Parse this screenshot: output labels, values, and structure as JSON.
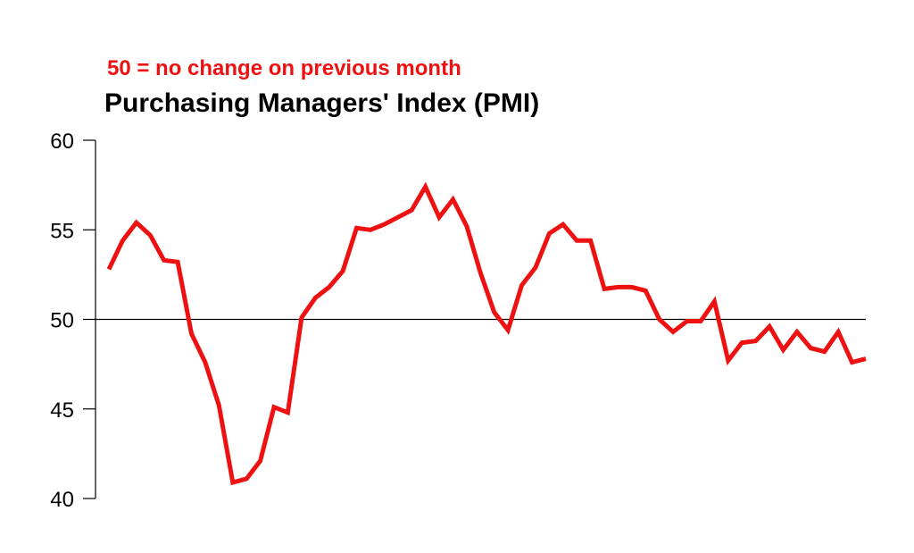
{
  "chart_data": {
    "type": "line",
    "note": "50 =  no change on previous month",
    "title": "Purchasing Managers' Index (PMI)",
    "xlabel": "",
    "ylabel": "",
    "ylim": [
      40,
      60
    ],
    "yticks": [
      40,
      45,
      50,
      55,
      60
    ],
    "reference_line": 50,
    "colors": {
      "series": "#ee1111",
      "note": "#ee1111",
      "reference": "#000000",
      "axis": "#000000"
    },
    "series": [
      {
        "values": [
          52.8,
          54.4,
          55.4,
          54.7,
          53.3,
          53.2,
          49.2,
          47.6,
          45.2,
          40.9,
          41.1,
          42.1,
          45.1,
          44.8,
          50.1,
          51.2,
          51.8,
          52.7,
          55.1,
          55.0,
          55.3,
          55.7,
          56.1,
          57.4,
          55.7,
          56.7,
          55.2,
          52.6,
          50.4,
          49.4,
          51.9,
          52.9,
          54.8,
          55.3,
          54.4,
          54.4,
          51.7,
          51.8,
          51.8,
          51.6,
          50.0,
          49.3,
          49.9,
          49.9,
          51.0,
          47.7,
          48.7,
          48.8,
          49.6,
          48.3,
          49.3,
          48.4,
          48.2,
          49.3,
          47.6,
          47.8
        ]
      }
    ]
  }
}
